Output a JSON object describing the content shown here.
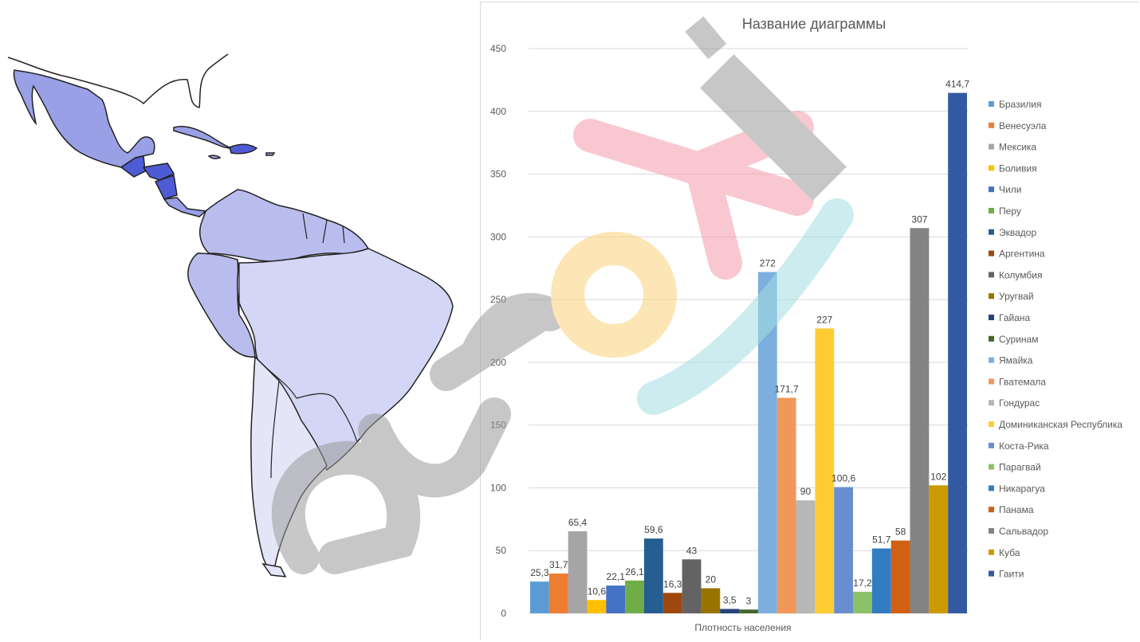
{
  "chart_data": {
    "type": "bar",
    "title": "Название диаграммы",
    "xlabel": "Плотность населения",
    "ylabel": "",
    "ylim": [
      0,
      450
    ],
    "yticks": [
      0,
      50,
      100,
      150,
      200,
      250,
      300,
      350,
      400,
      450
    ],
    "grid": true,
    "legend_position": "right",
    "series": [
      {
        "name": "Бразилия",
        "value": 25.3,
        "label": "25,3",
        "color": "#5b9bd5"
      },
      {
        "name": "Венесуэла",
        "value": 31.7,
        "label": "31,7",
        "color": "#ed7d31"
      },
      {
        "name": "Мексика",
        "value": 65.4,
        "label": "65,4",
        "color": "#a5a5a5"
      },
      {
        "name": "Боливия",
        "value": 10.6,
        "label": "10,6",
        "color": "#ffc000"
      },
      {
        "name": "Чили",
        "value": 22.1,
        "label": "22,1",
        "color": "#4472c4"
      },
      {
        "name": "Перу",
        "value": 26.1,
        "label": "26,1",
        "color": "#70ad47"
      },
      {
        "name": "Эквадор",
        "value": 59.6,
        "label": "59,6",
        "color": "#255e91"
      },
      {
        "name": "Аргентина",
        "value": 16.3,
        "label": "16,3",
        "color": "#9e480e"
      },
      {
        "name": "Колумбия",
        "value": 43,
        "label": "43",
        "color": "#636363"
      },
      {
        "name": "Уругвай",
        "value": 20,
        "label": "20",
        "color": "#997300"
      },
      {
        "name": "Гайана",
        "value": 3.5,
        "label": "3,5",
        "color": "#264478"
      },
      {
        "name": "Суринам",
        "value": 3,
        "label": "3",
        "color": "#43682b"
      },
      {
        "name": "Ямайка",
        "value": 272,
        "label": "272",
        "color": "#7cafdd"
      },
      {
        "name": "Гватемала",
        "value": 171.7,
        "label": "171,7",
        "color": "#f1975a"
      },
      {
        "name": "Гондурас",
        "value": 90,
        "label": "90",
        "color": "#b7b7b7"
      },
      {
        "name": "Доминиканская Республика",
        "value": 227,
        "label": "227",
        "color": "#ffcd33"
      },
      {
        "name": "Коста-Рика",
        "value": 100.6,
        "label": "100,6",
        "color": "#698ed0"
      },
      {
        "name": "Парагвай",
        "value": 17.2,
        "label": "17,2",
        "color": "#8cc168"
      },
      {
        "name": "Никарагуа",
        "value": 51.7,
        "label": "51,7",
        "color": "#327dc2"
      },
      {
        "name": "Панама",
        "value": 58,
        "label": "58",
        "color": "#d26012"
      },
      {
        "name": "Сальвадор",
        "value": 307,
        "label": "307",
        "color": "#848484"
      },
      {
        "name": "Куба",
        "value": 102,
        "label": "102",
        "color": "#cc9a00"
      },
      {
        "name": "Гаити",
        "value": 414.7,
        "label": "414,7",
        "color": "#335aa1"
      }
    ]
  },
  "map": {
    "region_colors": {
      "darkest": "#4f5bd5",
      "dark": "#9aa0e6",
      "medium": "#b9bdee",
      "light": "#d3d6f4",
      "lightest": "#e4e6f8"
    }
  },
  "watermark": {
    "logo_text": "euroki",
    "colors": [
      "#c8c8c8",
      "#f7b6c2",
      "#fde3a1",
      "#bfe8ec"
    ]
  }
}
